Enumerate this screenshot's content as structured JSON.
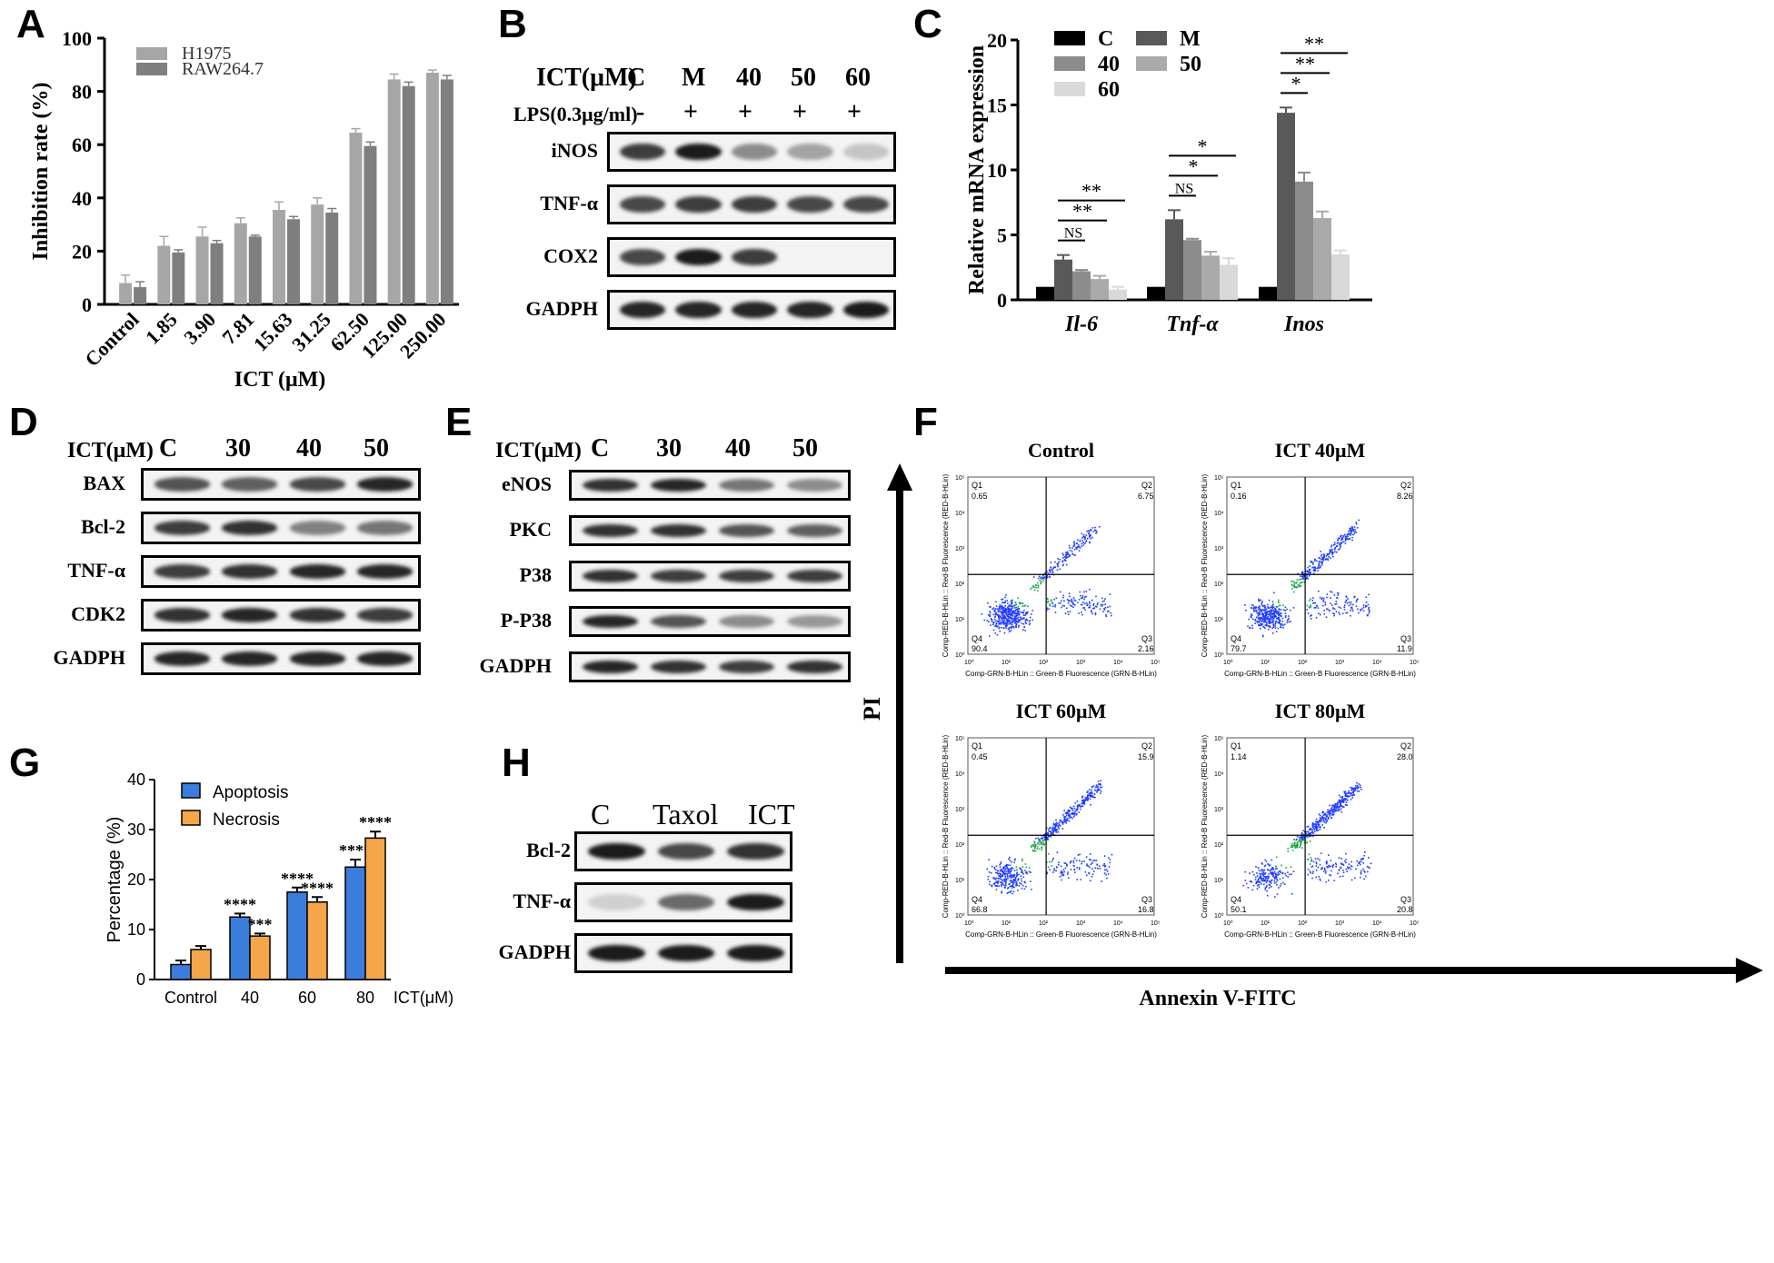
{
  "panels": {
    "A": {
      "letter": "A",
      "chart_data": {
        "type": "bar",
        "title": "",
        "xlabel": "ICT (μM)",
        "ylabel": "Inhibition rate (%)",
        "ylim": [
          0,
          100
        ],
        "yticks": [
          0,
          20,
          40,
          60,
          80,
          100
        ],
        "categories": [
          "Control",
          "1.85",
          "3.90",
          "7.81",
          "15.63",
          "31.25",
          "62.50",
          "125.00",
          "250.00"
        ],
        "series": [
          {
            "name": "H1975",
            "color": "#a6a6a6",
            "values": [
              8,
              22,
              25.5,
              30.5,
              35.5,
              37.5,
              64.5,
              84.5,
              87
            ],
            "errors": [
              3,
              3.5,
              3.5,
              2,
              3,
              2.5,
              1.5,
              2,
              1
            ]
          },
          {
            "name": "RAW264.7",
            "color": "#7f7f7f",
            "values": [
              6.5,
              19.5,
              23,
              25.5,
              32,
              34.5,
              59.5,
              82,
              84.5
            ],
            "errors": [
              2,
              1,
              1,
              0.5,
              1,
              1.5,
              1.5,
              1.5,
              1.5
            ]
          }
        ],
        "legend": "top-left"
      }
    },
    "B": {
      "letter": "B",
      "row1_label": "ICT(μM)",
      "row1_values": [
        "C",
        "M",
        "40",
        "50",
        "60"
      ],
      "row2_label": "LPS(0.3μg/ml)",
      "row2_values": [
        "-",
        "+",
        "+",
        "+",
        "+"
      ],
      "blots": [
        "iNOS",
        "TNF-α",
        "COX2",
        "GADPH"
      ]
    },
    "C": {
      "letter": "C",
      "chart_data": {
        "type": "bar",
        "title": "",
        "ylabel": "Relative mRNA expression",
        "ylim": [
          0,
          20
        ],
        "yticks": [
          0,
          5,
          10,
          15,
          20
        ],
        "categories": [
          "Il-6",
          "Tnf-α",
          "Inos"
        ],
        "series": [
          {
            "name": "C",
            "color": "#000000",
            "values": [
              1,
              1,
              1
            ],
            "errors": [
              0,
              0,
              0
            ]
          },
          {
            "name": "M",
            "color": "#595959",
            "values": [
              3.1,
              6.2,
              14.4
            ],
            "errors": [
              0.35,
              0.7,
              0.4
            ]
          },
          {
            "name": "40",
            "color": "#8c8c8c",
            "values": [
              2.2,
              4.6,
              9.1
            ],
            "errors": [
              0.1,
              0.1,
              0.7
            ]
          },
          {
            "name": "50",
            "color": "#aaaaaa",
            "values": [
              1.6,
              3.4,
              6.3
            ],
            "errors": [
              0.25,
              0.3,
              0.5
            ]
          },
          {
            "name": "60",
            "color": "#d9d9d9",
            "values": [
              0.8,
              2.7,
              3.5
            ],
            "errors": [
              0.2,
              0.5,
              0.3
            ]
          }
        ],
        "significance": [
          {
            "group": "Il-6",
            "labels": [
              "NS",
              "**",
              "**"
            ]
          },
          {
            "group": "Tnf-α",
            "labels": [
              "NS",
              "*",
              "*"
            ]
          },
          {
            "group": "Inos",
            "labels": [
              "*",
              "**",
              "**"
            ]
          }
        ],
        "legend": "top-left"
      }
    },
    "D": {
      "letter": "D",
      "row1_label": "ICT(μM)",
      "row1_values": [
        "C",
        "30",
        "40",
        "50"
      ],
      "blots": [
        "BAX",
        "Bcl-2",
        "TNF-α",
        "CDK2",
        "GADPH"
      ]
    },
    "E": {
      "letter": "E",
      "row1_label": "ICT(μM)",
      "row1_values": [
        "C",
        "30",
        "40",
        "50"
      ],
      "blots": [
        "eNOS",
        "PKC",
        "P38",
        "P-P38",
        "GADPH"
      ]
    },
    "F": {
      "letter": "F",
      "y_axis": "PI",
      "x_axis": "Annexin V-FITC",
      "plot_xlabel": "Comp-GRN-B-HLin :: Green-B Fluorescence (GRN-B-HLin)",
      "plot_ylabel": "Comp-RED-B-HLin :: Red-B Fluorescence (RED-B-HLin)",
      "plots": [
        {
          "title": "Control",
          "q1": "0.65",
          "q2": "6.75",
          "q3": "2.16",
          "q4": "90.4"
        },
        {
          "title": "ICT 40μM",
          "q1": "0.16",
          "q2": "8.26",
          "q3": "11.9",
          "q4": "79.7"
        },
        {
          "title": "ICT 60μM",
          "q1": "0.45",
          "q2": "15.9",
          "q3": "16.8",
          "q4": "66.8"
        },
        {
          "title": "ICT 80μM",
          "q1": "1.14",
          "q2": "28.0",
          "q3": "20.8",
          "q4": "50.1"
        }
      ]
    },
    "G": {
      "letter": "G",
      "chart_data": {
        "type": "bar",
        "title": "",
        "ylabel": "Percentage (%)",
        "xlabel": "ICT(μM)",
        "ylim": [
          0,
          40
        ],
        "yticks": [
          0,
          10,
          20,
          30,
          40
        ],
        "categories": [
          "Control",
          "40",
          "60",
          "80"
        ],
        "series": [
          {
            "name": "Apoptosis",
            "color": "#3b7ddd",
            "values": [
              3,
              12.5,
              17.5,
              22.5
            ],
            "errors": [
              0.8,
              0.7,
              0.9,
              1.5
            ],
            "sig": [
              "",
              "****",
              "****",
              "****"
            ]
          },
          {
            "name": "Necrosis",
            "color": "#f5a54a",
            "values": [
              6,
              8.7,
              15.5,
              28.3
            ],
            "errors": [
              0.7,
              0.5,
              1.0,
              1.3
            ],
            "sig": [
              "",
              "***",
              "****",
              "****"
            ]
          }
        ],
        "legend": "top-left"
      }
    },
    "H": {
      "letter": "H",
      "row1_values": [
        "C",
        "Taxol",
        "ICT"
      ],
      "blots": [
        "Bcl-2",
        "TNF-α",
        "GADPH"
      ]
    }
  }
}
